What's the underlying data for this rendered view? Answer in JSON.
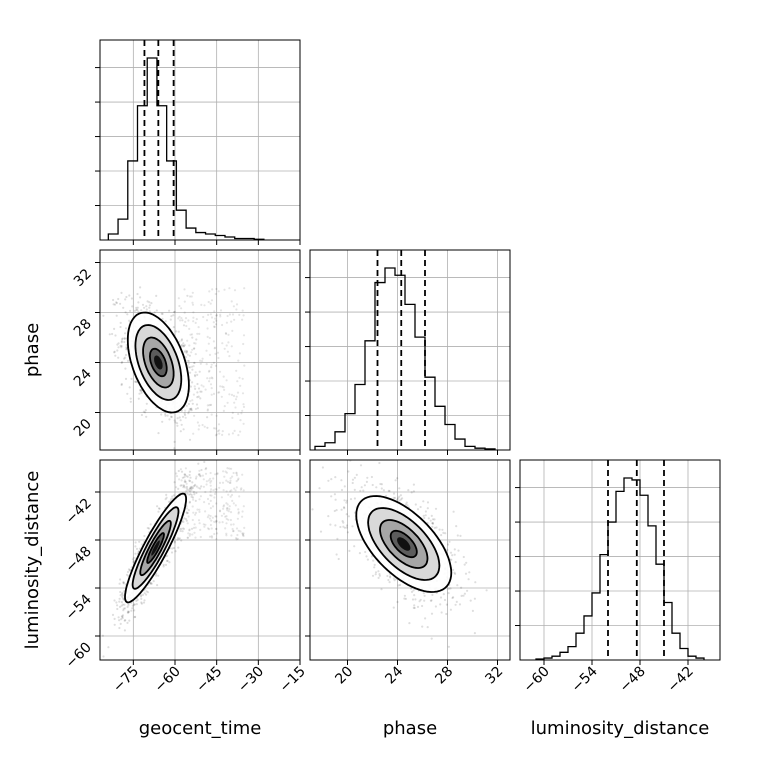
{
  "chart_data": {
    "type": "corner",
    "parameters": [
      "geocent_time",
      "phase",
      "luminosity_distance"
    ],
    "axis_labels": {
      "x": [
        "geocent_time",
        "phase",
        "luminosity_distance"
      ],
      "y": [
        "phase",
        "luminosity_distance"
      ]
    },
    "grid": true,
    "ranges": [
      [
        -87,
        -15
      ],
      [
        17,
        33
      ],
      [
        -63,
        -38
      ]
    ],
    "ticks": {
      "geocent_time": [
        "−75",
        "−60",
        "−45",
        "−30",
        "−15"
      ],
      "phase": [
        "20",
        "24",
        "28",
        "32"
      ],
      "luminosity_distance": [
        "−60",
        "−54",
        "−48",
        "−42"
      ]
    },
    "tick_values": {
      "geocent_time": [
        -75,
        -60,
        -45,
        -30,
        -15
      ],
      "phase": [
        20,
        24,
        28,
        32
      ],
      "luminosity_distance": [
        -60,
        -54,
        -48,
        -42
      ]
    },
    "quantiles": {
      "geocent_time": [
        -71,
        -66,
        -60.5
      ],
      "phase": [
        22.4,
        24.3,
        26.2
      ],
      "luminosity_distance": [
        -52,
        -48.4,
        -45
      ]
    },
    "histograms": {
      "geocent_time": {
        "bin_edges": [
          -84,
          -80.5,
          -77,
          -73.5,
          -70,
          -66.5,
          -63,
          -59.5,
          -56,
          -52.5,
          -49,
          -45.5,
          -42,
          -38.5,
          -35,
          -31.5,
          -28
        ],
        "counts": [
          4,
          14,
          53,
          90,
          122,
          90,
          53,
          20,
          8,
          5,
          4,
          3,
          2,
          1,
          1,
          0.5
        ]
      },
      "phase": {
        "bin_edges": [
          17.4,
          18.2,
          19.0,
          19.8,
          20.6,
          21.4,
          22.2,
          23.0,
          23.8,
          24.6,
          25.4,
          26.2,
          27.0,
          27.8,
          28.6,
          29.4,
          30.2,
          31.0,
          31.8
        ],
        "counts": [
          1,
          2,
          5,
          10,
          18,
          30,
          46,
          50,
          48,
          40,
          31,
          20,
          12,
          7,
          3,
          1,
          0.5,
          0.3
        ]
      },
      "luminosity_distance": {
        "bin_edges": [
          -61,
          -60,
          -59,
          -58,
          -57,
          -56,
          -55,
          -54,
          -53,
          -52,
          -51,
          -50,
          -49,
          -48,
          -47,
          -46,
          -45,
          -44,
          -43,
          -42,
          -41,
          -40
        ],
        "counts": [
          0.5,
          1,
          2,
          4,
          7,
          14,
          23,
          35,
          55,
          72,
          88,
          95,
          94,
          86,
          70,
          50,
          30,
          14,
          6,
          2,
          1
        ]
      }
    },
    "joint": [
      {
        "x": "geocent_time",
        "y": "phase",
        "center": [
          -66,
          24
        ],
        "sd": [
          5.5,
          2.0
        ],
        "rho": -0.45,
        "tail": {
          "x_range": [
            -60,
            -35
          ],
          "y_range": [
            18,
            30
          ]
        }
      },
      {
        "x": "geocent_time",
        "y": "luminosity_distance",
        "center": [
          -67,
          -49
        ],
        "sd": [
          5.5,
          3.4
        ],
        "rho": 0.9,
        "tail": {
          "x_range": [
            -60,
            -35
          ],
          "y_range": [
            -48,
            -39
          ]
        }
      },
      {
        "x": "phase",
        "y": "luminosity_distance",
        "center": [
          24.5,
          -48.5
        ],
        "sd": [
          1.9,
          3.0
        ],
        "rho": -0.6
      }
    ]
  }
}
